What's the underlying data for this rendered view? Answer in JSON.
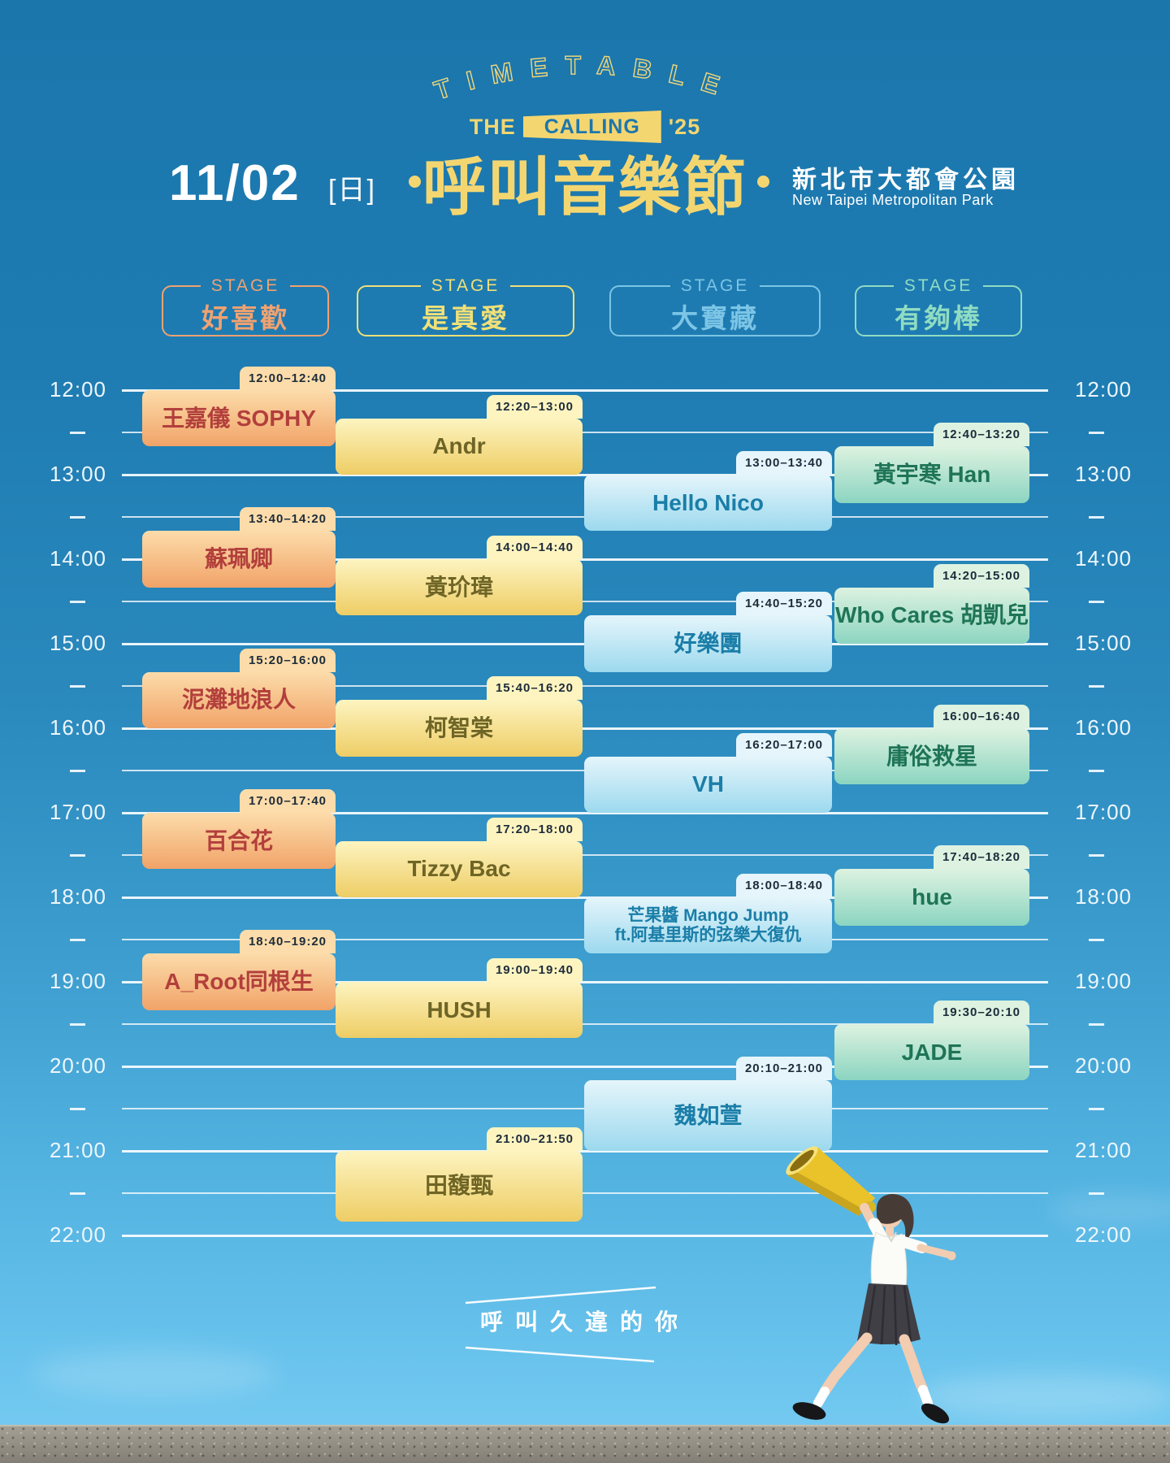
{
  "header": {
    "timetable_arc": "TIMETABLE",
    "logo_the": "THE",
    "logo_calling": "CALLING",
    "logo_year": "'25",
    "festival_name": "呼叫音樂節",
    "date": "11/02",
    "weekday": "[日]",
    "venue_zh": "新北市大都會公園",
    "venue_en": "New Taipei Metropolitan Park"
  },
  "theme": {
    "background_top": "#1b76ac",
    "background_bottom": "#79ccf2",
    "accent_yellow": "#f4d671",
    "grid_line": "#fafdff",
    "time_label": "#edf6fc",
    "tab_text": "#1d2b3a",
    "wall_grey": "#8b887f"
  },
  "stages": [
    {
      "stage_label": "STAGE",
      "name": "好喜歡",
      "accent": "#f0a271",
      "block_top": "#fcdcaa",
      "block_bottom": "#f1a368",
      "artist_color": "#b23f3c"
    },
    {
      "stage_label": "STAGE",
      "name": "是真愛",
      "accent": "#f1e077",
      "block_top": "#fdf4c0",
      "block_bottom": "#eecd65",
      "artist_color": "#6e6526"
    },
    {
      "stage_label": "STAGE",
      "name": "大寶藏",
      "accent": "#7cc5e6",
      "block_top": "#e5f5fb",
      "block_bottom": "#9cd9ee",
      "artist_color": "#1a7ea8"
    },
    {
      "stage_label": "STAGE",
      "name": "有夠棒",
      "accent": "#90dcc2",
      "block_top": "#ddf2e0",
      "block_bottom": "#8bd5c1",
      "artist_color": "#1f7457"
    }
  ],
  "timeline": {
    "hours": [
      "12:00",
      "13:00",
      "14:00",
      "15:00",
      "16:00",
      "17:00",
      "18:00",
      "19:00",
      "20:00",
      "21:00",
      "22:00"
    ]
  },
  "events": [
    {
      "stage": 0,
      "time": "12:00–12:40",
      "artist": "王嘉儀 SOPHY"
    },
    {
      "stage": 0,
      "time": "13:40–14:20",
      "artist": "蘇珮卿"
    },
    {
      "stage": 0,
      "time": "15:20–16:00",
      "artist": "泥灘地浪人"
    },
    {
      "stage": 0,
      "time": "17:00–17:40",
      "artist": "百合花"
    },
    {
      "stage": 0,
      "time": "18:40–19:20",
      "artist": "A_Root同根生"
    },
    {
      "stage": 1,
      "time": "12:20–13:00",
      "artist": "Andr"
    },
    {
      "stage": 1,
      "time": "14:00–14:40",
      "artist": "黃玠瑋"
    },
    {
      "stage": 1,
      "time": "15:40–16:20",
      "artist": "柯智棠"
    },
    {
      "stage": 1,
      "time": "17:20–18:00",
      "artist": "Tizzy Bac"
    },
    {
      "stage": 1,
      "time": "19:00–19:40",
      "artist": "HUSH"
    },
    {
      "stage": 1,
      "time": "21:00–21:50",
      "artist": "田馥甄"
    },
    {
      "stage": 2,
      "time": "13:00–13:40",
      "artist": "Hello Nico"
    },
    {
      "stage": 2,
      "time": "14:40–15:20",
      "artist": "好樂團"
    },
    {
      "stage": 2,
      "time": "16:20–17:00",
      "artist": "VH"
    },
    {
      "stage": 2,
      "time": "18:00–18:40",
      "artist": "芒果醬 Mango Jump",
      "artist_line2": "ft.阿基里斯的弦樂大復仇"
    },
    {
      "stage": 2,
      "time": "20:10–21:00",
      "artist": "魏如萱"
    },
    {
      "stage": 3,
      "time": "12:40–13:20",
      "artist": "黃宇寒 Han"
    },
    {
      "stage": 3,
      "time": "14:20–15:00",
      "artist": "Who Cares 胡凱兒"
    },
    {
      "stage": 3,
      "time": "16:00–16:40",
      "artist": "庸俗救星"
    },
    {
      "stage": 3,
      "time": "17:40–18:20",
      "artist": "hue"
    },
    {
      "stage": 3,
      "time": "19:30–20:10",
      "artist": "JADE"
    }
  ],
  "footer": {
    "tagline": "呼叫久違的你"
  },
  "chart_data": {
    "type": "table",
    "title": "THE CALLING '25 呼叫音樂節 Timetable 11/02 (日)",
    "time_axis": {
      "start": "12:00",
      "end": "22:00",
      "tick_interval_minutes": 60,
      "minor_interval_minutes": 30
    },
    "categories": [
      "好喜歡",
      "是真愛",
      "大寶藏",
      "有夠棒"
    ],
    "series": [
      {
        "name": "好喜歡",
        "values": [
          [
            "12:00",
            "12:40",
            "王嘉儀 SOPHY"
          ],
          [
            "13:40",
            "14:20",
            "蘇珮卿"
          ],
          [
            "15:20",
            "16:00",
            "泥灘地浪人"
          ],
          [
            "17:00",
            "17:40",
            "百合花"
          ],
          [
            "18:40",
            "19:20",
            "A_Root同根生"
          ]
        ]
      },
      {
        "name": "是真愛",
        "values": [
          [
            "12:20",
            "13:00",
            "Andr"
          ],
          [
            "14:00",
            "14:40",
            "黃玠瑋"
          ],
          [
            "15:40",
            "16:20",
            "柯智棠"
          ],
          [
            "17:20",
            "18:00",
            "Tizzy Bac"
          ],
          [
            "19:00",
            "19:40",
            "HUSH"
          ],
          [
            "21:00",
            "21:50",
            "田馥甄"
          ]
        ]
      },
      {
        "name": "大寶藏",
        "values": [
          [
            "13:00",
            "13:40",
            "Hello Nico"
          ],
          [
            "14:40",
            "15:20",
            "好樂團"
          ],
          [
            "16:20",
            "17:00",
            "VH"
          ],
          [
            "18:00",
            "18:40",
            "芒果醬 Mango Jump ft.阿基里斯的弦樂大復仇"
          ],
          [
            "20:10",
            "21:00",
            "魏如萱"
          ]
        ]
      },
      {
        "name": "有夠棒",
        "values": [
          [
            "12:40",
            "13:20",
            "黃宇寒 Han"
          ],
          [
            "14:20",
            "15:00",
            "Who Cares 胡凱兒"
          ],
          [
            "16:00",
            "16:40",
            "庸俗救星"
          ],
          [
            "17:40",
            "18:20",
            "hue"
          ],
          [
            "19:30",
            "20:10",
            "JADE"
          ]
        ]
      }
    ]
  }
}
